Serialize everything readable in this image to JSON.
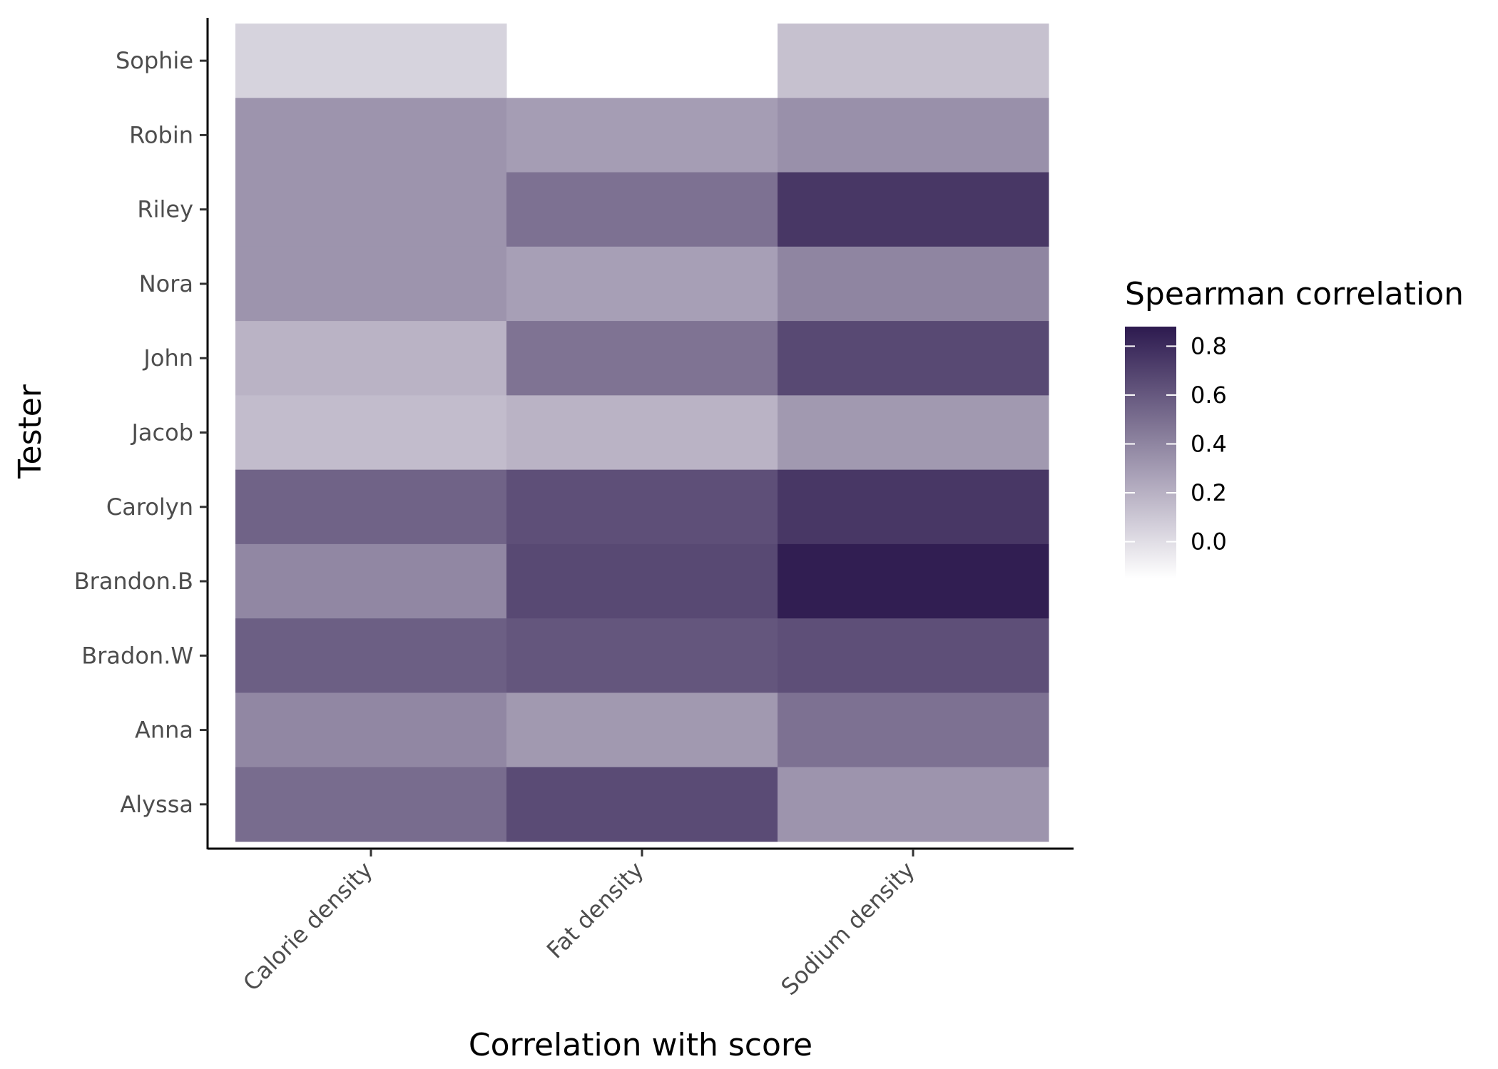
{
  "chart_data": {
    "type": "heatmap",
    "title": "",
    "xlabel": "Correlation with score",
    "ylabel": "Tester",
    "x_categories": [
      "Calorie density",
      "Fat density",
      "Sodium density"
    ],
    "y_categories": [
      "Sophie",
      "Robin",
      "Riley",
      "Nora",
      "John",
      "Jacob",
      "Carolyn",
      "Brandon.B",
      "Bradon.W",
      "Anna",
      "Alyssa"
    ],
    "values": [
      [
        0.05,
        null,
        0.13
      ],
      [
        0.33,
        0.29,
        0.35
      ],
      [
        0.33,
        0.49,
        0.75
      ],
      [
        0.33,
        0.28,
        0.4
      ],
      [
        0.19,
        0.48,
        0.67
      ],
      [
        0.15,
        0.19,
        0.31
      ],
      [
        0.55,
        0.64,
        0.75
      ],
      [
        0.39,
        0.67,
        0.86
      ],
      [
        0.57,
        0.61,
        0.64
      ],
      [
        0.39,
        0.31,
        0.49
      ],
      [
        0.51,
        0.66,
        0.33
      ]
    ],
    "legend": {
      "title": "Spearman correlation",
      "ticks": [
        0.0,
        0.2,
        0.4,
        0.6,
        0.8
      ],
      "range": [
        -0.15,
        0.88
      ],
      "position": "right"
    },
    "colors": {
      "low": "#ffffff",
      "high": "#2d1a4f"
    },
    "grid": false
  }
}
